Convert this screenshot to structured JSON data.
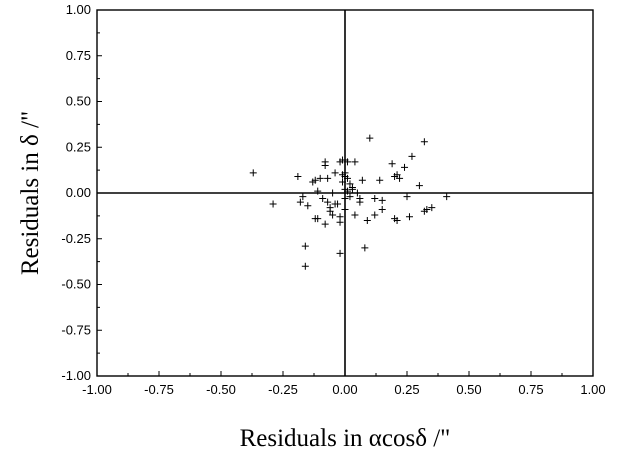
{
  "chart_data": {
    "type": "scatter",
    "title": "",
    "xlabel": "Residuals in αcosδ /\"",
    "ylabel": "Residuals in δ /\"",
    "xlim": [
      -1.0,
      1.0
    ],
    "ylim": [
      -1.0,
      1.0
    ],
    "grid": false,
    "marker": "plus",
    "reference_lines": {
      "x": 0,
      "y": 0
    },
    "x_ticks": [
      "-1.00",
      "-0.75",
      "-0.50",
      "-0.25",
      "0.00",
      "0.25",
      "0.50",
      "0.75",
      "1.00"
    ],
    "y_ticks": [
      "1.00",
      "0.75",
      "0.50",
      "0.25",
      "0.00",
      "-0.25",
      "-0.50",
      "-0.75",
      "-1.00"
    ],
    "series": [
      {
        "points": [
          [
            -0.37,
            0.11
          ],
          [
            -0.29,
            -0.06
          ],
          [
            -0.19,
            0.09
          ],
          [
            -0.18,
            -0.05
          ],
          [
            -0.17,
            -0.02
          ],
          [
            -0.16,
            -0.29
          ],
          [
            -0.16,
            -0.4
          ],
          [
            -0.15,
            -0.07
          ],
          [
            -0.13,
            0.06
          ],
          [
            -0.12,
            0.07
          ],
          [
            -0.12,
            -0.14
          ],
          [
            -0.11,
            0.01
          ],
          [
            -0.11,
            -0.14
          ],
          [
            -0.1,
            0.08
          ],
          [
            -0.09,
            -0.03
          ],
          [
            -0.08,
            -0.17
          ],
          [
            -0.08,
            0.15
          ],
          [
            -0.08,
            0.17
          ],
          [
            -0.07,
            0.08
          ],
          [
            -0.07,
            -0.05
          ],
          [
            -0.06,
            -0.1
          ],
          [
            -0.06,
            -0.08
          ],
          [
            -0.05,
            -0.12
          ],
          [
            -0.05,
            0.0
          ],
          [
            -0.04,
            0.11
          ],
          [
            -0.04,
            -0.06
          ],
          [
            -0.03,
            -0.06
          ],
          [
            -0.02,
            0.17
          ],
          [
            -0.02,
            -0.13
          ],
          [
            -0.02,
            -0.16
          ],
          [
            -0.02,
            -0.33
          ],
          [
            -0.01,
            0.18
          ],
          [
            -0.01,
            0.1
          ],
          [
            -0.01,
            0.06
          ],
          [
            0.0,
            0.18
          ],
          [
            0.0,
            0.11
          ],
          [
            0.0,
            0.09
          ],
          [
            0.0,
            0.02
          ],
          [
            0.0,
            -0.03
          ],
          [
            0.0,
            -0.09
          ],
          [
            0.01,
            0.17
          ],
          [
            0.01,
            0.08
          ],
          [
            0.01,
            0.01
          ],
          [
            0.02,
            0.05
          ],
          [
            0.02,
            -0.02
          ],
          [
            0.03,
            0.03
          ],
          [
            0.03,
            0.02
          ],
          [
            0.04,
            0.17
          ],
          [
            0.04,
            -0.12
          ],
          [
            0.05,
            0.0
          ],
          [
            0.06,
            -0.03
          ],
          [
            0.06,
            -0.05
          ],
          [
            0.07,
            0.07
          ],
          [
            0.08,
            -0.3
          ],
          [
            0.09,
            -0.15
          ],
          [
            0.1,
            0.3
          ],
          [
            0.12,
            -0.03
          ],
          [
            0.12,
            -0.12
          ],
          [
            0.14,
            0.07
          ],
          [
            0.15,
            -0.04
          ],
          [
            0.15,
            -0.09
          ],
          [
            0.19,
            0.16
          ],
          [
            0.2,
            0.09
          ],
          [
            0.2,
            -0.14
          ],
          [
            0.21,
            0.1
          ],
          [
            0.21,
            -0.15
          ],
          [
            0.22,
            0.08
          ],
          [
            0.24,
            0.14
          ],
          [
            0.25,
            -0.02
          ],
          [
            0.26,
            -0.13
          ],
          [
            0.27,
            0.2
          ],
          [
            0.3,
            0.04
          ],
          [
            0.32,
            0.28
          ],
          [
            0.32,
            -0.1
          ],
          [
            0.33,
            -0.09
          ],
          [
            0.35,
            -0.08
          ],
          [
            0.41,
            -0.02
          ]
        ]
      }
    ]
  }
}
